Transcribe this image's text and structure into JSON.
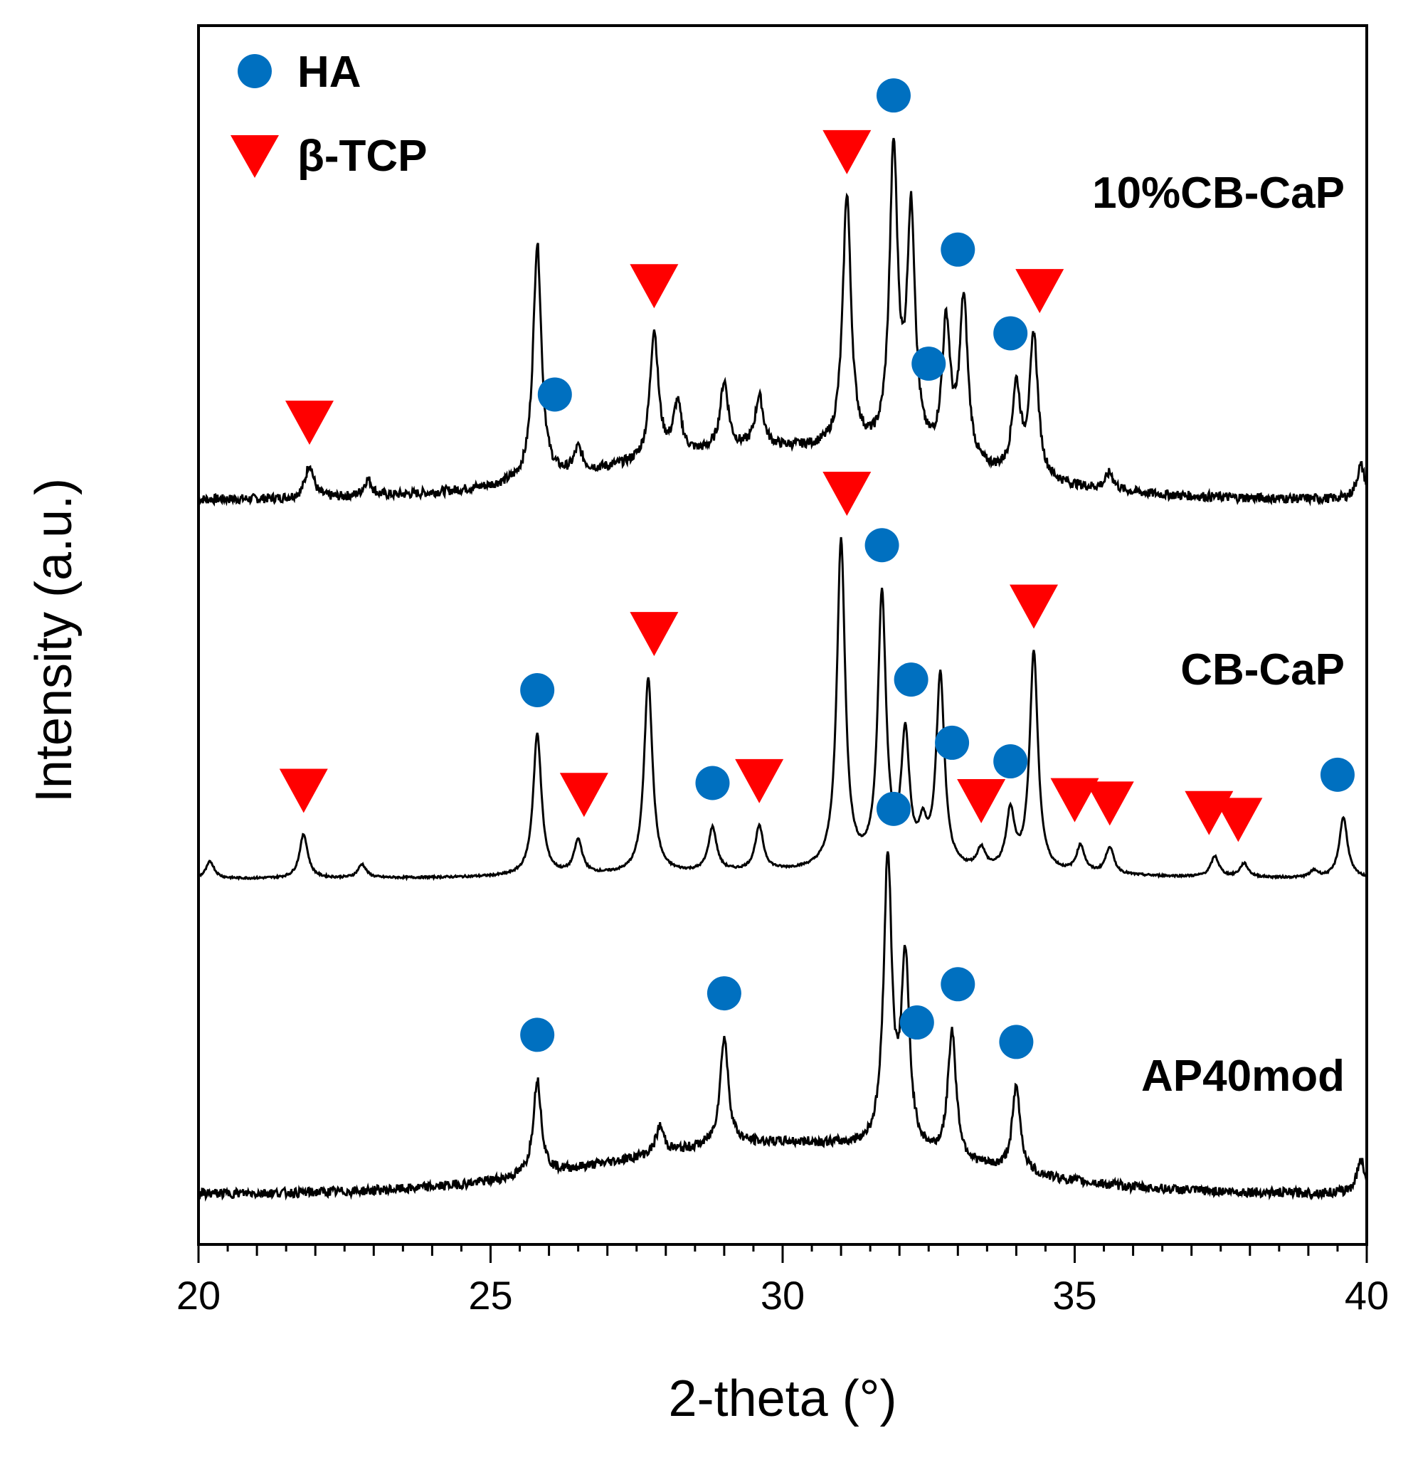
{
  "chart_data": {
    "type": "line",
    "title": "",
    "xlabel": "2-theta (°)",
    "ylabel": "Intensity (a.u.)",
    "xlim": [
      20,
      40
    ],
    "ylim": [
      0,
      3.6
    ],
    "x_ticks": [
      20,
      25,
      30,
      35,
      40
    ],
    "y_ticks_shown": false,
    "grid": false,
    "legend": {
      "position": "top-left",
      "entries": [
        {
          "label": "HA",
          "marker": "circle",
          "color": "#0070C0"
        },
        {
          "label": "β-TCP",
          "marker": "triangle-down",
          "color": "#FF0000"
        }
      ]
    },
    "series": [
      {
        "name": "10%CB-CaP",
        "baseline": 2.2,
        "color": "#000000",
        "peaks": [
          [
            21.9,
            0.1
          ],
          [
            22.9,
            0.05
          ],
          [
            25.8,
            0.7
          ],
          [
            26.5,
            0.07
          ],
          [
            27.8,
            0.38
          ],
          [
            28.2,
            0.15
          ],
          [
            29.0,
            0.2
          ],
          [
            29.6,
            0.15
          ],
          [
            31.1,
            0.75
          ],
          [
            31.9,
            0.88
          ],
          [
            32.2,
            0.7
          ],
          [
            32.8,
            0.4
          ],
          [
            33.1,
            0.48
          ],
          [
            34.0,
            0.26
          ],
          [
            34.3,
            0.42
          ],
          [
            35.6,
            0.05
          ],
          [
            39.9,
            0.1
          ]
        ],
        "HA_markers": [
          26.1,
          31.9,
          32.5,
          33.0,
          33.9
        ],
        "TCP_markers": [
          21.9,
          27.8,
          31.1,
          34.4
        ]
      },
      {
        "name": "CB-CaP",
        "baseline": 1.08,
        "color": "#000000",
        "peaks": [
          [
            20.2,
            0.05
          ],
          [
            21.8,
            0.13
          ],
          [
            22.8,
            0.04
          ],
          [
            25.8,
            0.42
          ],
          [
            26.5,
            0.1
          ],
          [
            27.7,
            0.58
          ],
          [
            28.8,
            0.13
          ],
          [
            29.6,
            0.13
          ],
          [
            31.0,
            0.97
          ],
          [
            31.7,
            0.8
          ],
          [
            32.1,
            0.38
          ],
          [
            32.4,
            0.1
          ],
          [
            32.7,
            0.57
          ],
          [
            33.4,
            0.06
          ],
          [
            33.9,
            0.17
          ],
          [
            34.3,
            0.65
          ],
          [
            35.1,
            0.08
          ],
          [
            35.6,
            0.08
          ],
          [
            37.4,
            0.06
          ],
          [
            37.9,
            0.04
          ],
          [
            39.1,
            0.02
          ],
          [
            39.6,
            0.18
          ]
        ],
        "HA_markers": [
          25.8,
          28.8,
          31.7,
          32.2,
          32.9,
          33.9,
          39.5
        ],
        "TCP_markers": [
          21.8,
          26.6,
          27.8,
          29.6,
          31.1,
          33.4,
          35.0,
          35.6,
          37.3,
          37.8,
          34.3
        ]
      },
      {
        "name": "AP40mod",
        "baseline": 0.15,
        "color": "#000000",
        "peaks": [
          [
            25.8,
            0.28
          ],
          [
            27.9,
            0.08
          ],
          [
            29.0,
            0.32
          ],
          [
            31.8,
            0.85
          ],
          [
            32.1,
            0.55
          ],
          [
            32.9,
            0.38
          ],
          [
            34.0,
            0.25
          ],
          [
            39.9,
            0.1
          ]
        ],
        "HA_markers": [
          25.8,
          29.0,
          31.9,
          32.3,
          33.0,
          34.0
        ],
        "TCP_markers": []
      }
    ],
    "annotations": [
      "HA",
      "β-TCP",
      "10%CB-CaP",
      "CB-CaP",
      "AP40mod"
    ]
  }
}
